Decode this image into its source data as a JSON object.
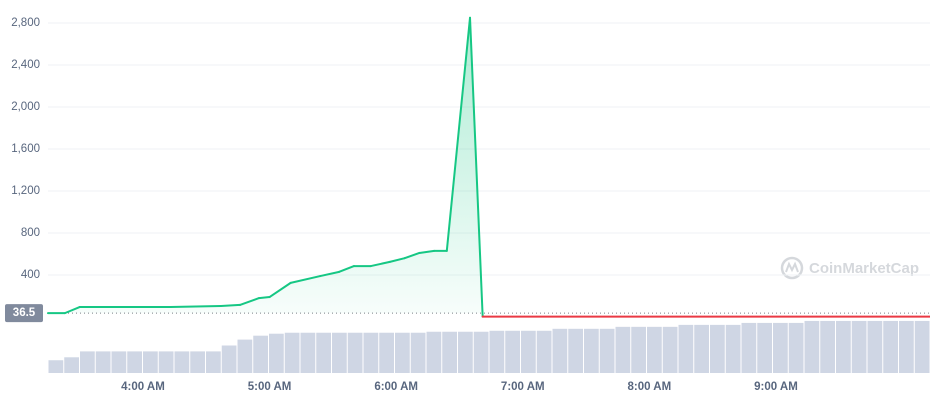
{
  "chart_data": {
    "type": "line",
    "x": [
      "3:15 AM",
      "3:23 AM",
      "3:30 AM",
      "4:13 AM",
      "4:37 AM",
      "4:46 AM",
      "4:55 AM",
      "5:00 AM",
      "5:10 AM",
      "5:24 AM",
      "5:33 AM",
      "5:40 AM",
      "5:48 AM",
      "5:57 AM",
      "6:04 AM",
      "6:11 AM",
      "6:18 AM",
      "6:24 AM",
      "6:35 AM",
      "6:41 AM",
      "10:13 AM"
    ],
    "values": [
      37,
      37,
      95,
      95,
      105,
      115,
      180,
      190,
      325,
      390,
      430,
      485,
      485,
      525,
      560,
      610,
      630,
      630,
      2850,
      3,
      3
    ],
    "xlim": [
      "3:15 AM",
      "10:13 AM"
    ],
    "xticks": [
      "4:00 AM",
      "5:00 AM",
      "6:00 AM",
      "7:00 AM",
      "8:00 AM",
      "9:00 AM"
    ],
    "ylim": [
      0,
      3000
    ],
    "yticks": [
      {
        "value": 400,
        "label": "400"
      },
      {
        "value": 800,
        "label": "800"
      },
      {
        "value": 1200,
        "label": "1,200"
      },
      {
        "value": 1600,
        "label": "1,600"
      },
      {
        "value": 2000,
        "label": "2,000"
      },
      {
        "value": 2400,
        "label": "2,400"
      },
      {
        "value": 2800,
        "label": "2,800"
      }
    ],
    "grid": true,
    "reference": 36.5,
    "up_color": "#16c784",
    "down_color": "#ea3943",
    "volume": {
      "color": "#cfd6e4",
      "ylim": [
        0,
        56
      ],
      "values": [
        13,
        16,
        22,
        22,
        22,
        22,
        22,
        22,
        22,
        22,
        22,
        28,
        34,
        38,
        40,
        41,
        41,
        41,
        41,
        41,
        41,
        41,
        41,
        41,
        42,
        42,
        42,
        42,
        43,
        43,
        43,
        43,
        45,
        45,
        45,
        45,
        47,
        47,
        47,
        47,
        49,
        49,
        49,
        49,
        51,
        51,
        51,
        51,
        53,
        53,
        53,
        53,
        53,
        53,
        53,
        53
      ]
    },
    "watermark": "CoinMarketCap"
  }
}
